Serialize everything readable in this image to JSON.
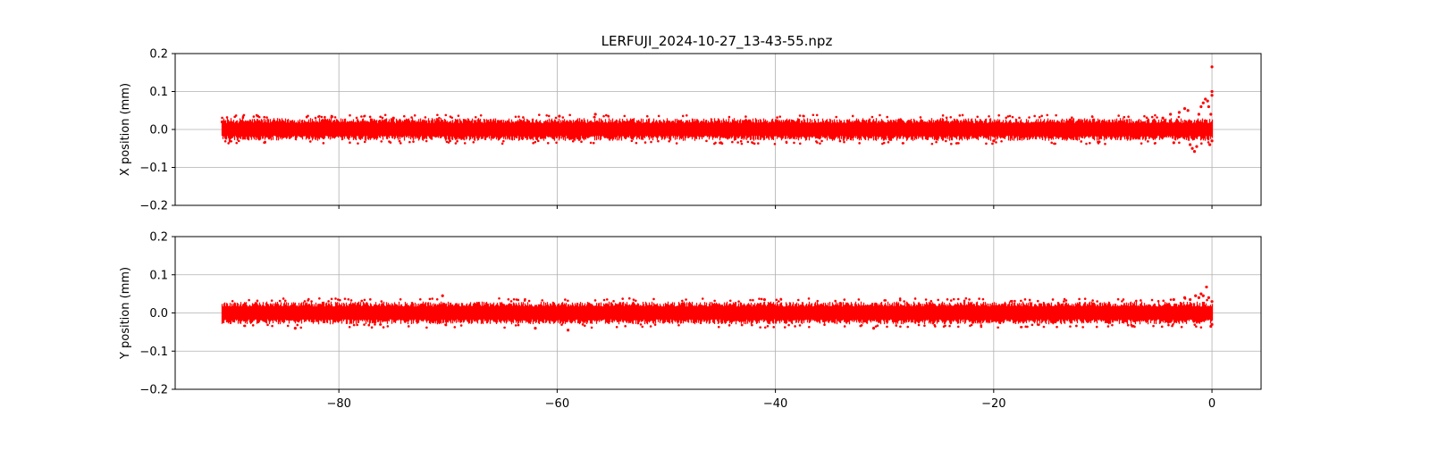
{
  "chart_data": {
    "title": "LERFUJI_2024-10-27_13-43-55.npz",
    "style": {
      "marker_color": "#ff0000",
      "grid": true,
      "grid_color": "#b0b0b0",
      "sharex": true
    },
    "xaxis": {
      "label": "",
      "lim": [
        -95,
        4.5
      ],
      "ticks": [
        -80,
        -60,
        -40,
        -20,
        0
      ],
      "tick_labels": [
        "−80",
        "−60",
        "−40",
        "−20",
        "0"
      ]
    },
    "charts": [
      {
        "type": "scatter",
        "ylabel": "X position (mm)",
        "ylim": [
          -0.2,
          0.2
        ],
        "yticks": [
          -0.2,
          -0.1,
          0.0,
          0.1,
          0.2
        ],
        "ytick_labels": [
          "−0.2",
          "−0.1",
          "0.0",
          "0.1",
          "0.2"
        ],
        "x_range": [
          -90.7,
          0
        ],
        "band": [
          -0.03,
          0.03
        ],
        "series": [
          {
            "points": [
              [
                -90.7,
                0.02
              ],
              [
                -75,
                0.03
              ],
              [
                -56.5,
                0.04
              ],
              [
                -59.8,
                0.035
              ],
              [
                -45,
                -0.035
              ],
              [
                -20,
                -0.03
              ],
              [
                -4.5,
                0.03
              ],
              [
                -3.8,
                0.04
              ],
              [
                -3.5,
                -0.035
              ],
              [
                -3.0,
                0.045
              ],
              [
                -2.5,
                0.055
              ],
              [
                -2.2,
                0.05
              ],
              [
                -2.0,
                -0.04
              ],
              [
                -1.8,
                -0.05
              ],
              [
                -1.6,
                -0.058
              ],
              [
                -1.4,
                -0.045
              ],
              [
                -1.2,
                0.04
              ],
              [
                -1.0,
                0.06
              ],
              [
                -0.8,
                0.07
              ],
              [
                -0.6,
                0.08
              ],
              [
                -0.4,
                0.075
              ],
              [
                -0.3,
                0.06
              ],
              [
                -0.2,
                -0.04
              ],
              [
                -0.1,
                0.04
              ],
              [
                0.0,
                0.1
              ],
              [
                0.0,
                0.165
              ],
              [
                0.0,
                0.09
              ],
              [
                0.0,
                -0.03
              ]
            ]
          }
        ]
      },
      {
        "type": "scatter",
        "ylabel": "Y position (mm)",
        "ylim": [
          -0.2,
          0.2
        ],
        "yticks": [
          -0.2,
          -0.1,
          0.0,
          0.1,
          0.2
        ],
        "ytick_labels": [
          "−0.2",
          "−0.1",
          "0.0",
          "0.1",
          "0.2"
        ],
        "x_range": [
          -90.7,
          0
        ],
        "band": [
          -0.03,
          0.03
        ],
        "series": [
          {
            "points": [
              [
                -70.5,
                0.045
              ],
              [
                -62,
                -0.04
              ],
              [
                -59,
                -0.045
              ],
              [
                -84,
                -0.04
              ],
              [
                -41,
                0.035
              ],
              [
                -31,
                -0.04
              ],
              [
                -3.5,
                0.035
              ],
              [
                -2.5,
                0.04
              ],
              [
                -2.0,
                0.035
              ],
              [
                -1.5,
                0.045
              ],
              [
                -1.2,
                0.04
              ],
              [
                -1.0,
                0.05
              ],
              [
                -0.8,
                0.045
              ],
              [
                -0.5,
                0.068
              ],
              [
                -0.3,
                0.04
              ],
              [
                -0.1,
                -0.035
              ],
              [
                0.0,
                -0.03
              ],
              [
                0.0,
                0.03
              ]
            ]
          }
        ]
      }
    ]
  }
}
